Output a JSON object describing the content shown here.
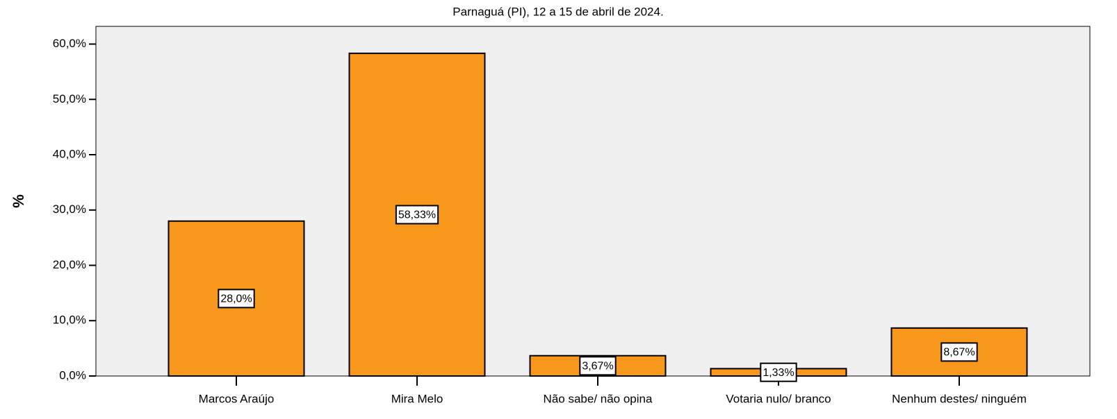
{
  "chart_data": {
    "type": "bar",
    "title": "Parnaguá (PI), 12 a 15 de abril de 2024.",
    "y_label": "%",
    "categories": [
      "Marcos Araújo",
      "Mira Melo",
      "Não sabe/ não opina",
      "Votaria nulo/ branco",
      "Nenhum destes/ ninguém"
    ],
    "values": [
      28.0,
      58.33,
      3.67,
      1.33,
      8.67
    ],
    "value_labels": [
      "28,0%",
      "58,33%",
      "3,67%",
      "1,33%",
      "8,67%"
    ],
    "color": "#f7981d",
    "ylim": [
      0,
      63.2
    ],
    "yticks": [
      {
        "value": 0,
        "label": "0,0%"
      },
      {
        "value": 10,
        "label": "10,0%"
      },
      {
        "value": 20,
        "label": "20,0%"
      },
      {
        "value": 30,
        "label": "30,0%"
      },
      {
        "value": 40,
        "label": "40,0%"
      },
      {
        "value": 50,
        "label": "50,0%"
      },
      {
        "value": 60,
        "label": "60,0%"
      }
    ],
    "grid": false
  }
}
